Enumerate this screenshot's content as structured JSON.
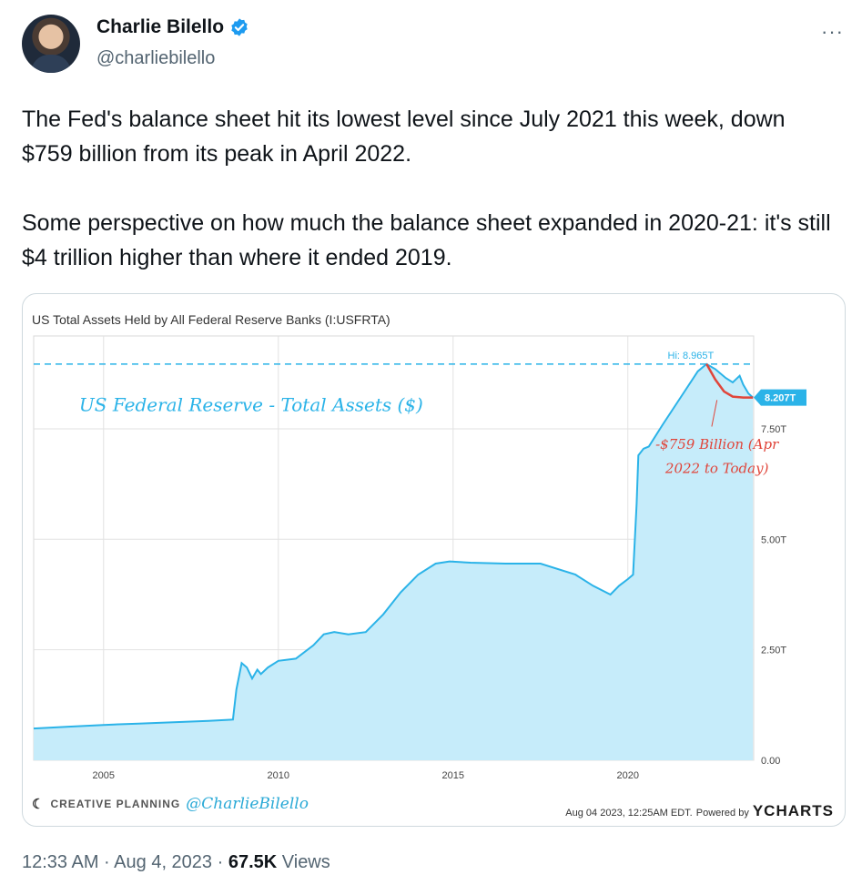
{
  "author": {
    "name": "Charlie Bilello",
    "handle": "@charliebilello"
  },
  "more_label": "···",
  "tweet_text": "The Fed's balance sheet hit its lowest level since July 2021 this week, down $759 billion from its peak in April 2022.\n\nSome perspective on how much the balance sheet expanded in 2020-21: it's still $4 trillion higher than where it ended 2019.",
  "chart_data": {
    "type": "area",
    "title": "US Total Assets Held by All Federal Reserve Banks (I:USFRTA)",
    "annotation_title": "US Federal Reserve - Total Assets ($)",
    "y_tick_labels": [
      "0.00",
      "2.50T",
      "5.00T",
      "7.50T"
    ],
    "y_ticks": [
      0,
      2.5,
      5,
      7.5
    ],
    "x_tick_labels": [
      "2005",
      "2010",
      "2015",
      "2020"
    ],
    "x_ticks": [
      2005,
      2010,
      2015,
      2020
    ],
    "xlim": [
      2003,
      2023.6
    ],
    "ylim": [
      0,
      9.6
    ],
    "high_label": "Hi: 8.965T",
    "high_value": 8.965,
    "last_label": "8.207T",
    "last_value": 8.207,
    "drawdown_note_line1": "-$759 Billion (Apr",
    "drawdown_note_line2": "2022 to Today)",
    "series": [
      {
        "x": [
          2003.0,
          2004.0,
          2005.0,
          2006.0,
          2007.0,
          2008.0,
          2008.7,
          2008.8,
          2008.95,
          2009.1,
          2009.25,
          2009.4,
          2009.5,
          2009.7,
          2010.0,
          2010.5,
          2011.0,
          2011.3,
          2011.6,
          2012.0,
          2012.5,
          2013.0,
          2013.5,
          2014.0,
          2014.5,
          2014.9,
          2015.5,
          2016.5,
          2017.5,
          2018.5,
          2019.0,
          2019.5,
          2019.75,
          2020.0,
          2020.15,
          2020.25,
          2020.3,
          2020.45,
          2020.6,
          2021.0,
          2021.5,
          2022.0,
          2022.25,
          2022.5,
          2022.8,
          2023.0,
          2023.2,
          2023.3,
          2023.45,
          2023.58
        ],
        "y": [
          0.72,
          0.76,
          0.8,
          0.83,
          0.86,
          0.89,
          0.92,
          1.6,
          2.2,
          2.1,
          1.85,
          2.05,
          1.95,
          2.1,
          2.25,
          2.3,
          2.6,
          2.85,
          2.9,
          2.85,
          2.9,
          3.3,
          3.8,
          4.2,
          4.45,
          4.5,
          4.47,
          4.45,
          4.45,
          4.2,
          3.95,
          3.75,
          3.95,
          4.1,
          4.2,
          5.8,
          6.9,
          7.05,
          7.1,
          7.6,
          8.2,
          8.8,
          8.965,
          8.85,
          8.65,
          8.55,
          8.7,
          8.5,
          8.3,
          8.207
        ]
      }
    ],
    "colors": {
      "line": "#2bb3e8",
      "fill": "#c6ecfa",
      "high": "#2bb3e8",
      "drawdown": "#e0453a",
      "note": "#e0453a"
    }
  },
  "branding": {
    "left_brand": "CREATIVE PLANNING",
    "left_handle": "@CharlieBilello",
    "timestamp": "Aug 04 2023, 12:25AM EDT.",
    "powered_by": "Powered by",
    "ycharts": "YCHARTS"
  },
  "meta": {
    "time": "12:33 AM · Aug 4, 2023 · ",
    "views_count": "67.5K",
    "views_label": "Views"
  }
}
